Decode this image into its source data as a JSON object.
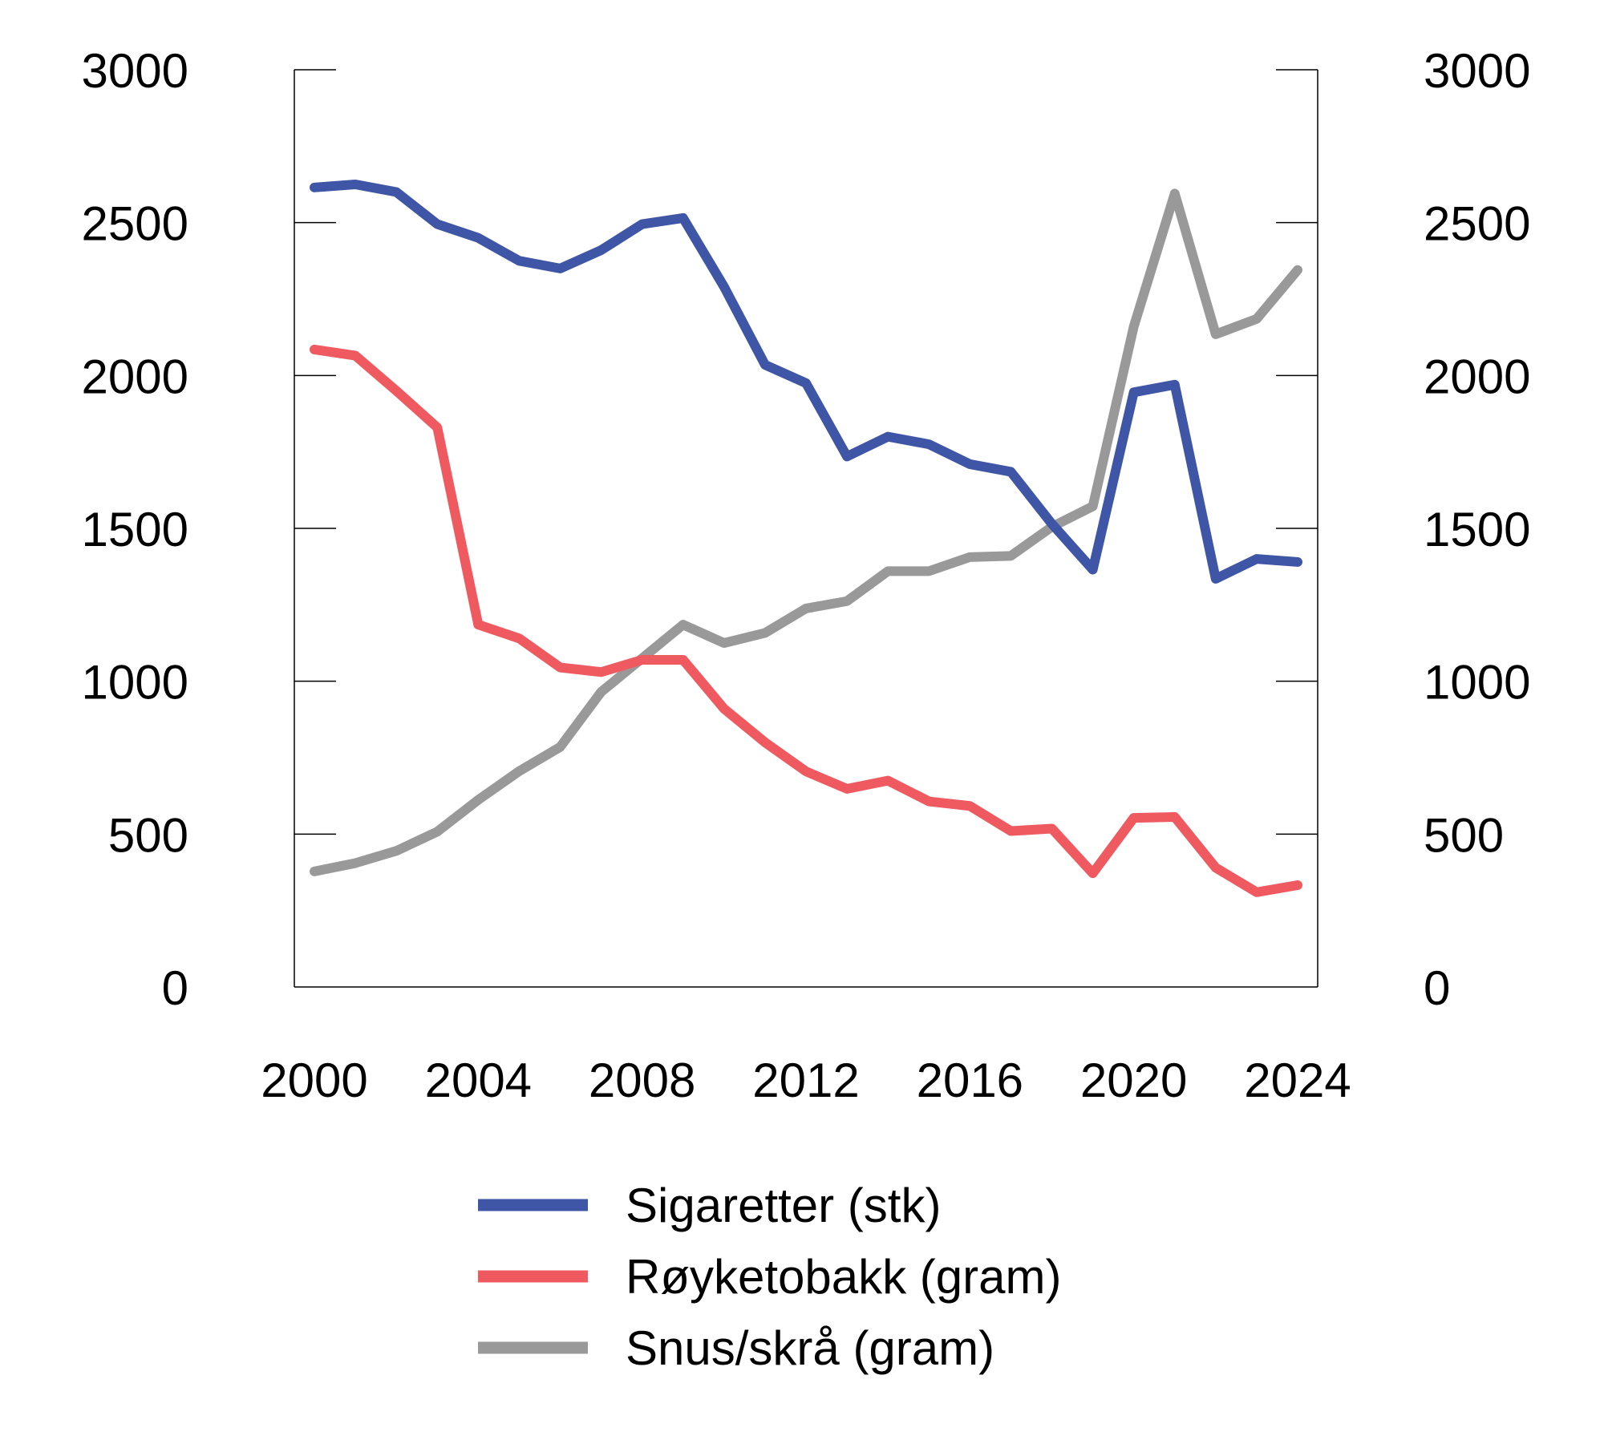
{
  "chart_data": {
    "type": "line",
    "title": "",
    "xlabel": "",
    "ylabel": "",
    "x": [
      2000,
      2001,
      2002,
      2003,
      2004,
      2005,
      2006,
      2007,
      2008,
      2009,
      2010,
      2011,
      2012,
      2013,
      2014,
      2015,
      2016,
      2017,
      2018,
      2019,
      2020,
      2021,
      2022,
      2023,
      2024
    ],
    "x_ticks": [
      "2000",
      "2004",
      "2008",
      "2012",
      "2016",
      "2020",
      "2024"
    ],
    "x_tick_values": [
      2000,
      2004,
      2008,
      2012,
      2016,
      2020,
      2024
    ],
    "ylim": [
      0,
      3000
    ],
    "y_ticks": [
      "0",
      "500",
      "1000",
      "1500",
      "2000",
      "2500",
      "3000"
    ],
    "y_tick_values": [
      0,
      500,
      1000,
      1500,
      2000,
      2500,
      3000
    ],
    "y_right_ticks": [
      "0",
      "500",
      "1000",
      "1500",
      "2000",
      "2500",
      "3000"
    ],
    "grid": false,
    "legend_position": "bottom",
    "series": [
      {
        "name": "Sigaretter (stk)",
        "color": "#3f55a6",
        "values": [
          2615,
          2625,
          2600,
          2495,
          2450,
          2375,
          2350,
          2410,
          2495,
          2515,
          2290,
          2035,
          1975,
          1735,
          1800,
          1775,
          1710,
          1685,
          1515,
          1365,
          1945,
          1970,
          1335,
          1400,
          1390
        ]
      },
      {
        "name": "Røyketobakk (gram)",
        "color": "#ef5a60",
        "values": [
          2085,
          2065,
          1950,
          1830,
          1185,
          1140,
          1045,
          1030,
          1070,
          1070,
          910,
          800,
          705,
          648,
          675,
          607,
          592,
          510,
          518,
          372,
          553,
          556,
          390,
          310,
          333
        ]
      },
      {
        "name": "Snus/skrå (gram)",
        "color": "#999999",
        "values": [
          378,
          405,
          445,
          508,
          612,
          706,
          785,
          965,
          1075,
          1185,
          1125,
          1158,
          1238,
          1262,
          1360,
          1360,
          1406,
          1410,
          1505,
          1572,
          2160,
          2595,
          2135,
          2185,
          2345
        ]
      }
    ]
  }
}
